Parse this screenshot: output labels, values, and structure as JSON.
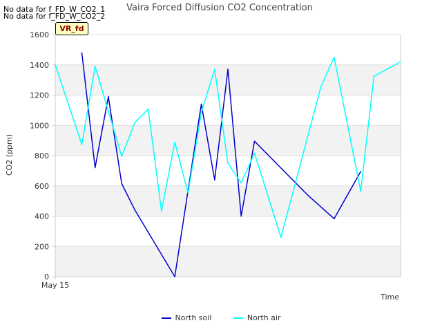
{
  "notices": [
    "No data for f_FD_W_CO2_1",
    "No data for f_FD_W_CO2_2"
  ],
  "site_tag": "VR_fd",
  "colors": {
    "band": "#f2f2f2",
    "grid": "#dddddd",
    "axis": "#cccccc"
  },
  "chart_data": {
    "type": "line",
    "title": "Vaira Forced Diffusion CO2 Concentration",
    "xlabel": "Time",
    "ylabel": "CO2 (ppm)",
    "x_tick_labels": [
      "May 15"
    ],
    "ylim": [
      0,
      1600
    ],
    "yticks": [
      0,
      200,
      400,
      600,
      800,
      1000,
      1200,
      1400,
      1600
    ],
    "xlim": [
      0,
      26
    ],
    "grid": true,
    "legend_position": "bottom",
    "series": [
      {
        "name": "North soil",
        "color": "#0000cc",
        "x": [
          2,
          3,
          4,
          5,
          6,
          9,
          11,
          12,
          13,
          14,
          15,
          19,
          21,
          23
        ],
        "y": [
          1480,
          720,
          1190,
          615,
          440,
          0,
          1140,
          640,
          1370,
          400,
          895,
          540,
          383,
          695
        ]
      },
      {
        "name": "North air",
        "color": "#00ffff",
        "x": [
          0,
          2,
          3,
          5,
          6,
          7,
          8,
          9,
          10,
          11,
          12,
          13,
          14,
          15,
          17,
          20,
          21,
          23,
          24,
          26
        ],
        "y": [
          1400,
          873,
          1390,
          795,
          1020,
          1108,
          433,
          888,
          553,
          1085,
          1370,
          750,
          620,
          815,
          260,
          1255,
          1450,
          565,
          1325,
          1420
        ]
      }
    ]
  }
}
